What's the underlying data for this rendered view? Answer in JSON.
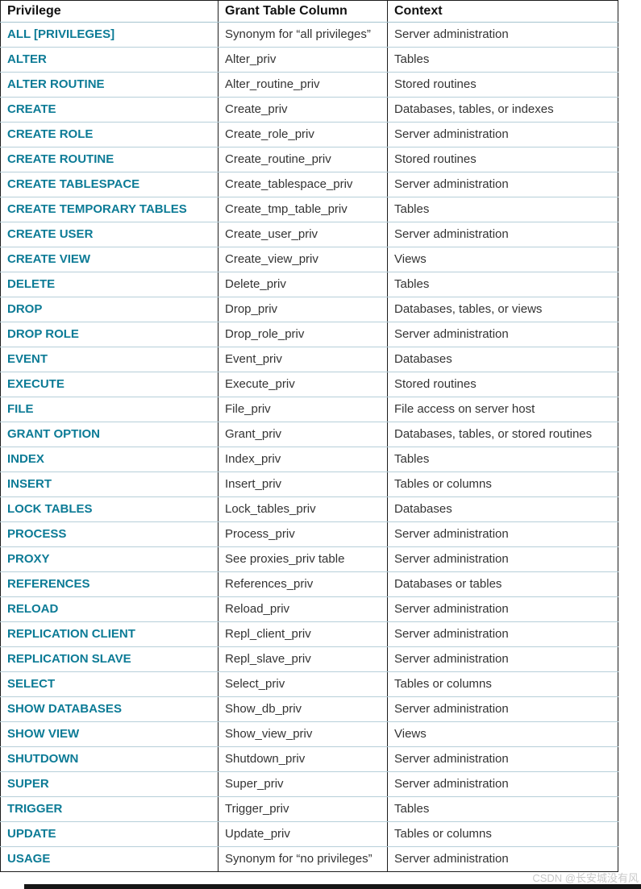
{
  "colors": {
    "link": "#0c7b96",
    "header_text": "#111111",
    "cell_text": "#333333",
    "row_divider": "#b6cfd9",
    "column_divider": "#1c1c1c",
    "watermark_text": "#c9c9c9"
  },
  "watermark": "CSDN @长安城没有风",
  "table": {
    "headers": [
      "Privilege",
      "Grant Table Column",
      "Context"
    ],
    "rows": [
      {
        "privilege": "ALL [PRIVILEGES]",
        "grant": "Synonym for “all privileges”",
        "context": "Server administration"
      },
      {
        "privilege": "ALTER",
        "grant": "Alter_priv",
        "context": "Tables"
      },
      {
        "privilege": "ALTER ROUTINE",
        "grant": "Alter_routine_priv",
        "context": "Stored routines"
      },
      {
        "privilege": "CREATE",
        "grant": "Create_priv",
        "context": "Databases, tables, or indexes"
      },
      {
        "privilege": "CREATE ROLE",
        "grant": "Create_role_priv",
        "context": "Server administration"
      },
      {
        "privilege": "CREATE ROUTINE",
        "grant": "Create_routine_priv",
        "context": "Stored routines"
      },
      {
        "privilege": "CREATE TABLESPACE",
        "grant": "Create_tablespace_priv",
        "context": "Server administration"
      },
      {
        "privilege": "CREATE TEMPORARY TABLES",
        "grant": "Create_tmp_table_priv",
        "context": "Tables"
      },
      {
        "privilege": "CREATE USER",
        "grant": "Create_user_priv",
        "context": "Server administration"
      },
      {
        "privilege": "CREATE VIEW",
        "grant": "Create_view_priv",
        "context": "Views"
      },
      {
        "privilege": "DELETE",
        "grant": "Delete_priv",
        "context": "Tables"
      },
      {
        "privilege": "DROP",
        "grant": "Drop_priv",
        "context": "Databases, tables, or views"
      },
      {
        "privilege": "DROP ROLE",
        "grant": "Drop_role_priv",
        "context": "Server administration"
      },
      {
        "privilege": "EVENT",
        "grant": "Event_priv",
        "context": "Databases"
      },
      {
        "privilege": "EXECUTE",
        "grant": "Execute_priv",
        "context": "Stored routines"
      },
      {
        "privilege": "FILE",
        "grant": "File_priv",
        "context": "File access on server host"
      },
      {
        "privilege": "GRANT OPTION",
        "grant": "Grant_priv",
        "context": "Databases, tables, or stored routines"
      },
      {
        "privilege": "INDEX",
        "grant": "Index_priv",
        "context": "Tables"
      },
      {
        "privilege": "INSERT",
        "grant": "Insert_priv",
        "context": "Tables or columns"
      },
      {
        "privilege": "LOCK TABLES",
        "grant": "Lock_tables_priv",
        "context": "Databases"
      },
      {
        "privilege": "PROCESS",
        "grant": "Process_priv",
        "context": "Server administration"
      },
      {
        "privilege": "PROXY",
        "grant": "See proxies_priv table",
        "context": "Server administration"
      },
      {
        "privilege": "REFERENCES",
        "grant": "References_priv",
        "context": "Databases or tables"
      },
      {
        "privilege": "RELOAD",
        "grant": "Reload_priv",
        "context": "Server administration"
      },
      {
        "privilege": "REPLICATION CLIENT",
        "grant": "Repl_client_priv",
        "context": "Server administration"
      },
      {
        "privilege": "REPLICATION SLAVE",
        "grant": "Repl_slave_priv",
        "context": "Server administration"
      },
      {
        "privilege": "SELECT",
        "grant": "Select_priv",
        "context": "Tables or columns"
      },
      {
        "privilege": "SHOW DATABASES",
        "grant": "Show_db_priv",
        "context": "Server administration"
      },
      {
        "privilege": "SHOW VIEW",
        "grant": "Show_view_priv",
        "context": "Views"
      },
      {
        "privilege": "SHUTDOWN",
        "grant": "Shutdown_priv",
        "context": "Server administration"
      },
      {
        "privilege": "SUPER",
        "grant": "Super_priv",
        "context": "Server administration"
      },
      {
        "privilege": "TRIGGER",
        "grant": "Trigger_priv",
        "context": "Tables"
      },
      {
        "privilege": "UPDATE",
        "grant": "Update_priv",
        "context": "Tables or columns"
      },
      {
        "privilege": "USAGE",
        "grant": "Synonym for “no privileges”",
        "context": "Server administration"
      }
    ]
  }
}
